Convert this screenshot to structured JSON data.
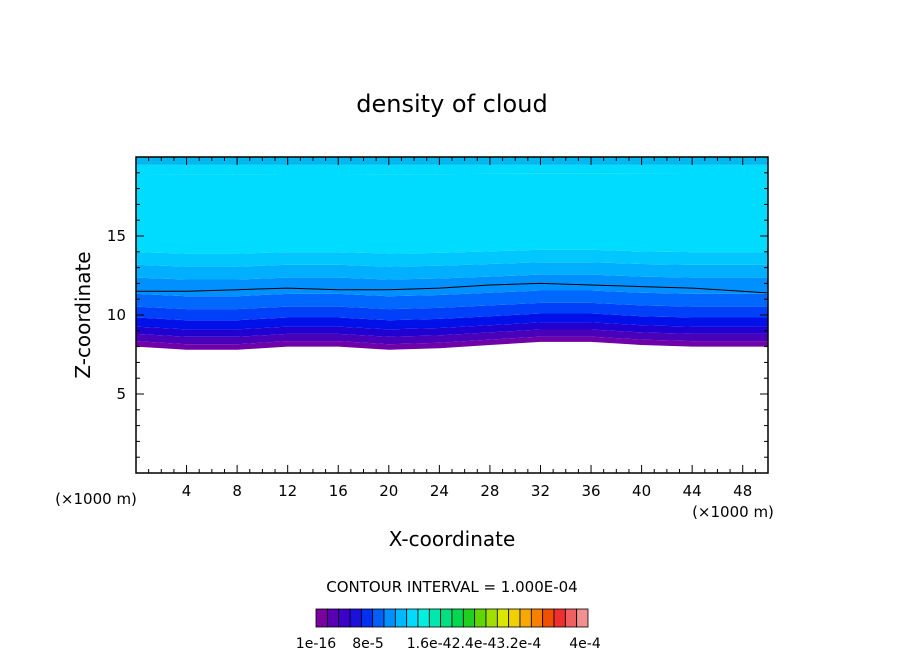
{
  "chart_data": {
    "type": "area",
    "title": "density of cloud",
    "xlabel": "X-coordinate",
    "ylabel": "Z-coordinate",
    "x_unit": "(×1000 m)",
    "z_unit": "(×1000 m)",
    "xlim": [
      0,
      50
    ],
    "ylim": [
      0,
      20
    ],
    "x_ticks": [
      4,
      8,
      12,
      16,
      20,
      24,
      28,
      32,
      36,
      40,
      44,
      48
    ],
    "y_ticks": [
      5,
      10,
      15
    ],
    "x_tick_labels": [
      "4",
      "8",
      "12",
      "16",
      "20",
      "24",
      "28",
      "32",
      "36",
      "40",
      "44",
      "48"
    ],
    "y_tick_labels": [
      "5",
      "10",
      "15"
    ],
    "contour_interval_text": "CONTOUR INTERVAL = 1.000E-04",
    "colorbar_labels": [
      "1e-16",
      "8e-5",
      "1.6e-4",
      "2.4e-4",
      "3.2e-4",
      "4e-4"
    ],
    "colorbar_label_text": [
      "1e-16",
      "8e-5",
      "1.6e-42.4e-43.2e-4",
      "4e-4"
    ],
    "colorbar_colors": [
      "#7a00a0",
      "#5a00b4",
      "#3c00c8",
      "#1e10dc",
      "#0030f0",
      "#0060f8",
      "#0090ff",
      "#00b8ff",
      "#00dcff",
      "#00f0e0",
      "#00e8b0",
      "#00e080",
      "#00d850",
      "#20d020",
      "#60d800",
      "#a0e000",
      "#d8e800",
      "#f0d000",
      "#f8a800",
      "#f88000",
      "#f05000",
      "#f03030",
      "#f06060",
      "#f09090"
    ],
    "cloud_layers": {
      "x": [
        0,
        4,
        8,
        12,
        16,
        20,
        24,
        28,
        32,
        36,
        40,
        44,
        48,
        50
      ],
      "cloud_base_z": [
        8.0,
        7.8,
        7.8,
        8.0,
        8.0,
        7.8,
        7.9,
        8.1,
        8.3,
        8.3,
        8.1,
        8.0,
        8.0,
        8.0
      ],
      "contour_line_z": [
        11.5,
        11.5,
        11.6,
        11.7,
        11.6,
        11.6,
        11.7,
        11.9,
        12.0,
        11.9,
        11.8,
        11.7,
        11.5,
        11.4
      ],
      "cloud_top_z": [
        19.5,
        19.5,
        19.5,
        19.5,
        19.5,
        19.5,
        19.5,
        19.5,
        19.5,
        19.5,
        19.5,
        19.5,
        19.5,
        19.5
      ]
    }
  }
}
